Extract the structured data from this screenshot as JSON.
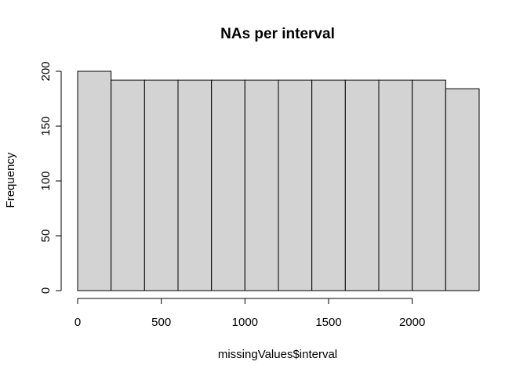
{
  "chart_data": {
    "type": "bar",
    "subtype": "histogram",
    "title": "NAs per interval",
    "xlabel": "missingValues$interval",
    "ylabel": "Frequency",
    "bin_edges": [
      0,
      200,
      400,
      600,
      800,
      1000,
      1200,
      1400,
      1600,
      1800,
      2000,
      2200,
      2400
    ],
    "values": [
      200,
      192,
      192,
      192,
      192,
      192,
      192,
      192,
      192,
      192,
      192,
      184
    ],
    "xlim": [
      0,
      2400
    ],
    "ylim": [
      0,
      200
    ],
    "x_ticks": [
      0,
      500,
      1000,
      1500,
      2000
    ],
    "x_tick_labels": [
      "0",
      "500",
      "1000",
      "1500",
      "2000"
    ],
    "y_ticks": [
      0,
      50,
      100,
      150,
      200
    ],
    "y_tick_labels": [
      "0",
      "50",
      "100",
      "150",
      "200"
    ],
    "grid": false,
    "legend": "none",
    "bar_fill": "#d3d3d3",
    "bar_stroke": "#000000"
  }
}
